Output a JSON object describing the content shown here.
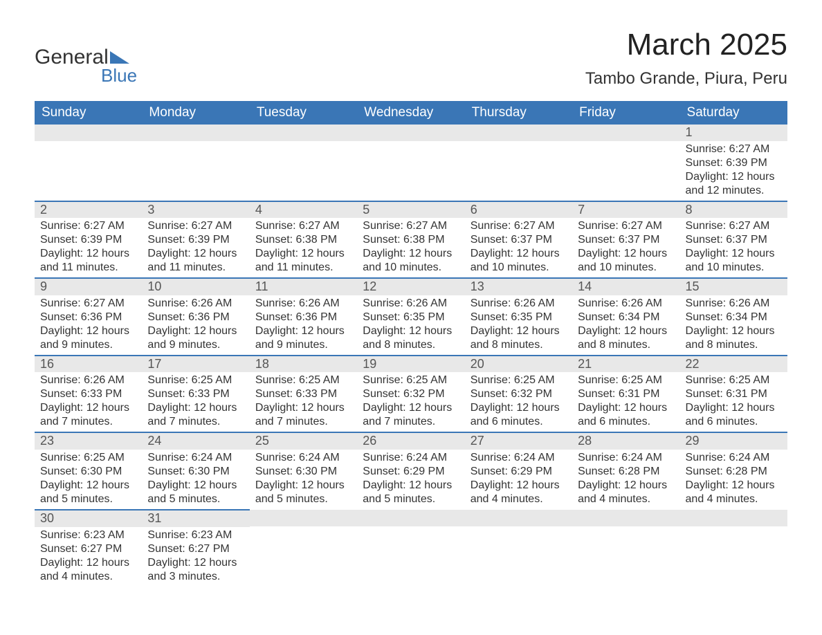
{
  "logo": {
    "text_primary": "General",
    "text_secondary": "Blue",
    "triangle_color": "#3a76b6"
  },
  "title": "March 2025",
  "subtitle": "Tambo Grande, Piura, Peru",
  "colors": {
    "header_bg": "#3a76b6",
    "header_text": "#ffffff",
    "daynum_bg": "#e8e8e8",
    "row_divider": "#3a76b6",
    "body_text": "#333333"
  },
  "typography": {
    "title_fontsize": 44,
    "subtitle_fontsize": 24,
    "header_fontsize": 19,
    "daynum_fontsize": 18,
    "body_fontsize": 16
  },
  "weekdays": [
    "Sunday",
    "Monday",
    "Tuesday",
    "Wednesday",
    "Thursday",
    "Friday",
    "Saturday"
  ],
  "weeks": [
    [
      {
        "day": "",
        "sunrise": "",
        "sunset": "",
        "daylight1": "",
        "daylight2": ""
      },
      {
        "day": "",
        "sunrise": "",
        "sunset": "",
        "daylight1": "",
        "daylight2": ""
      },
      {
        "day": "",
        "sunrise": "",
        "sunset": "",
        "daylight1": "",
        "daylight2": ""
      },
      {
        "day": "",
        "sunrise": "",
        "sunset": "",
        "daylight1": "",
        "daylight2": ""
      },
      {
        "day": "",
        "sunrise": "",
        "sunset": "",
        "daylight1": "",
        "daylight2": ""
      },
      {
        "day": "",
        "sunrise": "",
        "sunset": "",
        "daylight1": "",
        "daylight2": ""
      },
      {
        "day": "1",
        "sunrise": "Sunrise: 6:27 AM",
        "sunset": "Sunset: 6:39 PM",
        "daylight1": "Daylight: 12 hours",
        "daylight2": "and 12 minutes."
      }
    ],
    [
      {
        "day": "2",
        "sunrise": "Sunrise: 6:27 AM",
        "sunset": "Sunset: 6:39 PM",
        "daylight1": "Daylight: 12 hours",
        "daylight2": "and 11 minutes."
      },
      {
        "day": "3",
        "sunrise": "Sunrise: 6:27 AM",
        "sunset": "Sunset: 6:39 PM",
        "daylight1": "Daylight: 12 hours",
        "daylight2": "and 11 minutes."
      },
      {
        "day": "4",
        "sunrise": "Sunrise: 6:27 AM",
        "sunset": "Sunset: 6:38 PM",
        "daylight1": "Daylight: 12 hours",
        "daylight2": "and 11 minutes."
      },
      {
        "day": "5",
        "sunrise": "Sunrise: 6:27 AM",
        "sunset": "Sunset: 6:38 PM",
        "daylight1": "Daylight: 12 hours",
        "daylight2": "and 10 minutes."
      },
      {
        "day": "6",
        "sunrise": "Sunrise: 6:27 AM",
        "sunset": "Sunset: 6:37 PM",
        "daylight1": "Daylight: 12 hours",
        "daylight2": "and 10 minutes."
      },
      {
        "day": "7",
        "sunrise": "Sunrise: 6:27 AM",
        "sunset": "Sunset: 6:37 PM",
        "daylight1": "Daylight: 12 hours",
        "daylight2": "and 10 minutes."
      },
      {
        "day": "8",
        "sunrise": "Sunrise: 6:27 AM",
        "sunset": "Sunset: 6:37 PM",
        "daylight1": "Daylight: 12 hours",
        "daylight2": "and 10 minutes."
      }
    ],
    [
      {
        "day": "9",
        "sunrise": "Sunrise: 6:27 AM",
        "sunset": "Sunset: 6:36 PM",
        "daylight1": "Daylight: 12 hours",
        "daylight2": "and 9 minutes."
      },
      {
        "day": "10",
        "sunrise": "Sunrise: 6:26 AM",
        "sunset": "Sunset: 6:36 PM",
        "daylight1": "Daylight: 12 hours",
        "daylight2": "and 9 minutes."
      },
      {
        "day": "11",
        "sunrise": "Sunrise: 6:26 AM",
        "sunset": "Sunset: 6:36 PM",
        "daylight1": "Daylight: 12 hours",
        "daylight2": "and 9 minutes."
      },
      {
        "day": "12",
        "sunrise": "Sunrise: 6:26 AM",
        "sunset": "Sunset: 6:35 PM",
        "daylight1": "Daylight: 12 hours",
        "daylight2": "and 8 minutes."
      },
      {
        "day": "13",
        "sunrise": "Sunrise: 6:26 AM",
        "sunset": "Sunset: 6:35 PM",
        "daylight1": "Daylight: 12 hours",
        "daylight2": "and 8 minutes."
      },
      {
        "day": "14",
        "sunrise": "Sunrise: 6:26 AM",
        "sunset": "Sunset: 6:34 PM",
        "daylight1": "Daylight: 12 hours",
        "daylight2": "and 8 minutes."
      },
      {
        "day": "15",
        "sunrise": "Sunrise: 6:26 AM",
        "sunset": "Sunset: 6:34 PM",
        "daylight1": "Daylight: 12 hours",
        "daylight2": "and 8 minutes."
      }
    ],
    [
      {
        "day": "16",
        "sunrise": "Sunrise: 6:26 AM",
        "sunset": "Sunset: 6:33 PM",
        "daylight1": "Daylight: 12 hours",
        "daylight2": "and 7 minutes."
      },
      {
        "day": "17",
        "sunrise": "Sunrise: 6:25 AM",
        "sunset": "Sunset: 6:33 PM",
        "daylight1": "Daylight: 12 hours",
        "daylight2": "and 7 minutes."
      },
      {
        "day": "18",
        "sunrise": "Sunrise: 6:25 AM",
        "sunset": "Sunset: 6:33 PM",
        "daylight1": "Daylight: 12 hours",
        "daylight2": "and 7 minutes."
      },
      {
        "day": "19",
        "sunrise": "Sunrise: 6:25 AM",
        "sunset": "Sunset: 6:32 PM",
        "daylight1": "Daylight: 12 hours",
        "daylight2": "and 7 minutes."
      },
      {
        "day": "20",
        "sunrise": "Sunrise: 6:25 AM",
        "sunset": "Sunset: 6:32 PM",
        "daylight1": "Daylight: 12 hours",
        "daylight2": "and 6 minutes."
      },
      {
        "day": "21",
        "sunrise": "Sunrise: 6:25 AM",
        "sunset": "Sunset: 6:31 PM",
        "daylight1": "Daylight: 12 hours",
        "daylight2": "and 6 minutes."
      },
      {
        "day": "22",
        "sunrise": "Sunrise: 6:25 AM",
        "sunset": "Sunset: 6:31 PM",
        "daylight1": "Daylight: 12 hours",
        "daylight2": "and 6 minutes."
      }
    ],
    [
      {
        "day": "23",
        "sunrise": "Sunrise: 6:25 AM",
        "sunset": "Sunset: 6:30 PM",
        "daylight1": "Daylight: 12 hours",
        "daylight2": "and 5 minutes."
      },
      {
        "day": "24",
        "sunrise": "Sunrise: 6:24 AM",
        "sunset": "Sunset: 6:30 PM",
        "daylight1": "Daylight: 12 hours",
        "daylight2": "and 5 minutes."
      },
      {
        "day": "25",
        "sunrise": "Sunrise: 6:24 AM",
        "sunset": "Sunset: 6:30 PM",
        "daylight1": "Daylight: 12 hours",
        "daylight2": "and 5 minutes."
      },
      {
        "day": "26",
        "sunrise": "Sunrise: 6:24 AM",
        "sunset": "Sunset: 6:29 PM",
        "daylight1": "Daylight: 12 hours",
        "daylight2": "and 5 minutes."
      },
      {
        "day": "27",
        "sunrise": "Sunrise: 6:24 AM",
        "sunset": "Sunset: 6:29 PM",
        "daylight1": "Daylight: 12 hours",
        "daylight2": "and 4 minutes."
      },
      {
        "day": "28",
        "sunrise": "Sunrise: 6:24 AM",
        "sunset": "Sunset: 6:28 PM",
        "daylight1": "Daylight: 12 hours",
        "daylight2": "and 4 minutes."
      },
      {
        "day": "29",
        "sunrise": "Sunrise: 6:24 AM",
        "sunset": "Sunset: 6:28 PM",
        "daylight1": "Daylight: 12 hours",
        "daylight2": "and 4 minutes."
      }
    ],
    [
      {
        "day": "30",
        "sunrise": "Sunrise: 6:23 AM",
        "sunset": "Sunset: 6:27 PM",
        "daylight1": "Daylight: 12 hours",
        "daylight2": "and 4 minutes."
      },
      {
        "day": "31",
        "sunrise": "Sunrise: 6:23 AM",
        "sunset": "Sunset: 6:27 PM",
        "daylight1": "Daylight: 12 hours",
        "daylight2": "and 3 minutes."
      },
      {
        "day": "",
        "sunrise": "",
        "sunset": "",
        "daylight1": "",
        "daylight2": ""
      },
      {
        "day": "",
        "sunrise": "",
        "sunset": "",
        "daylight1": "",
        "daylight2": ""
      },
      {
        "day": "",
        "sunrise": "",
        "sunset": "",
        "daylight1": "",
        "daylight2": ""
      },
      {
        "day": "",
        "sunrise": "",
        "sunset": "",
        "daylight1": "",
        "daylight2": ""
      },
      {
        "day": "",
        "sunrise": "",
        "sunset": "",
        "daylight1": "",
        "daylight2": ""
      }
    ]
  ]
}
